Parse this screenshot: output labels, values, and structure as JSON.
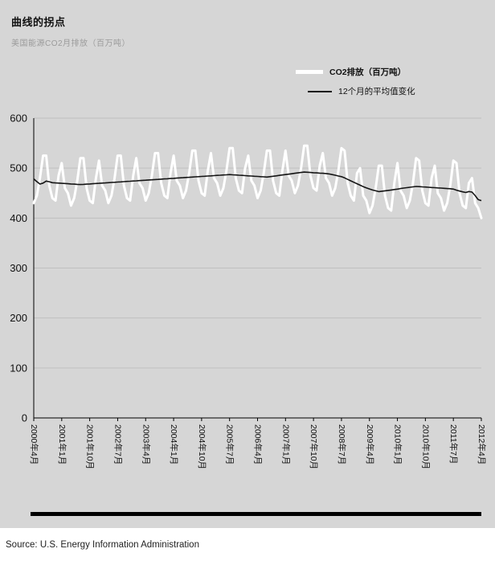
{
  "header": {
    "title": "曲线的拐点",
    "subtitle": "美国能源CO2月排放（百万吨）"
  },
  "legend": [
    {
      "label": "CO2排放（百万吨）",
      "color": "#ffffff",
      "style": "thick-line"
    },
    {
      "label": "12个月的平均值变化",
      "color": "#141414",
      "style": "thin-line"
    }
  ],
  "colors": {
    "background": "#d6d6d6",
    "grid": "#bfbfbf",
    "axis": "#000000",
    "co2_line": "#ffffff",
    "avg_line": "#141414",
    "tick_text": "#111111"
  },
  "chart_data": {
    "type": "line",
    "title": "曲线的拐点",
    "subtitle": "美国能源CO2月排放（百万吨）",
    "xlabel": "",
    "ylabel": "",
    "ylim": [
      0,
      600
    ],
    "y_ticks": [
      0,
      100,
      200,
      300,
      400,
      500,
      600
    ],
    "grid": "horizontal",
    "legend_position": "top-right",
    "x_unit": "month",
    "x_tick_labels": [
      "2000年4月",
      "2001年1月",
      "2001年10月",
      "2002年7月",
      "2003年4月",
      "2004年1月",
      "2004年10月",
      "2005年7月",
      "2006年4月",
      "2007年1月",
      "2007年10月",
      "2008年7月",
      "2009年4月",
      "2010年1月",
      "2010年10月",
      "2011年7月",
      "2012年4月"
    ],
    "x_tick_indices": [
      0,
      9,
      18,
      27,
      36,
      45,
      54,
      63,
      72,
      81,
      90,
      99,
      108,
      117,
      126,
      135,
      144
    ],
    "series": [
      {
        "name": "CO2排放（百万吨）",
        "color": "#ffffff",
        "values": [
          430,
          445,
          480,
          525,
          525,
          465,
          440,
          435,
          485,
          510,
          460,
          450,
          425,
          440,
          475,
          520,
          520,
          460,
          435,
          430,
          480,
          515,
          465,
          455,
          430,
          445,
          480,
          525,
          525,
          465,
          440,
          435,
          485,
          520,
          470,
          460,
          435,
          450,
          485,
          530,
          530,
          470,
          445,
          440,
          490,
          525,
          475,
          465,
          440,
          455,
          490,
          535,
          535,
          475,
          450,
          445,
          495,
          530,
          480,
          470,
          445,
          460,
          495,
          540,
          540,
          480,
          455,
          450,
          500,
          525,
          475,
          465,
          440,
          455,
          490,
          535,
          535,
          475,
          450,
          445,
          495,
          535,
          485,
          475,
          450,
          465,
          500,
          545,
          545,
          485,
          460,
          455,
          505,
          530,
          480,
          470,
          445,
          460,
          495,
          540,
          535,
          470,
          445,
          435,
          490,
          500,
          445,
          435,
          410,
          425,
          460,
          505,
          505,
          445,
          420,
          415,
          470,
          510,
          455,
          445,
          420,
          435,
          470,
          520,
          515,
          455,
          430,
          425,
          480,
          505,
          450,
          440,
          415,
          430,
          465,
          515,
          510,
          450,
          425,
          420,
          470,
          480,
          430,
          420,
          400
        ]
      },
      {
        "name": "12个月的平均值变化",
        "color": "#141414",
        "derived": "centered 12-month moving average of series 0"
      }
    ]
  },
  "footer": {
    "source": "Source: U.S. Energy Information Administration"
  }
}
